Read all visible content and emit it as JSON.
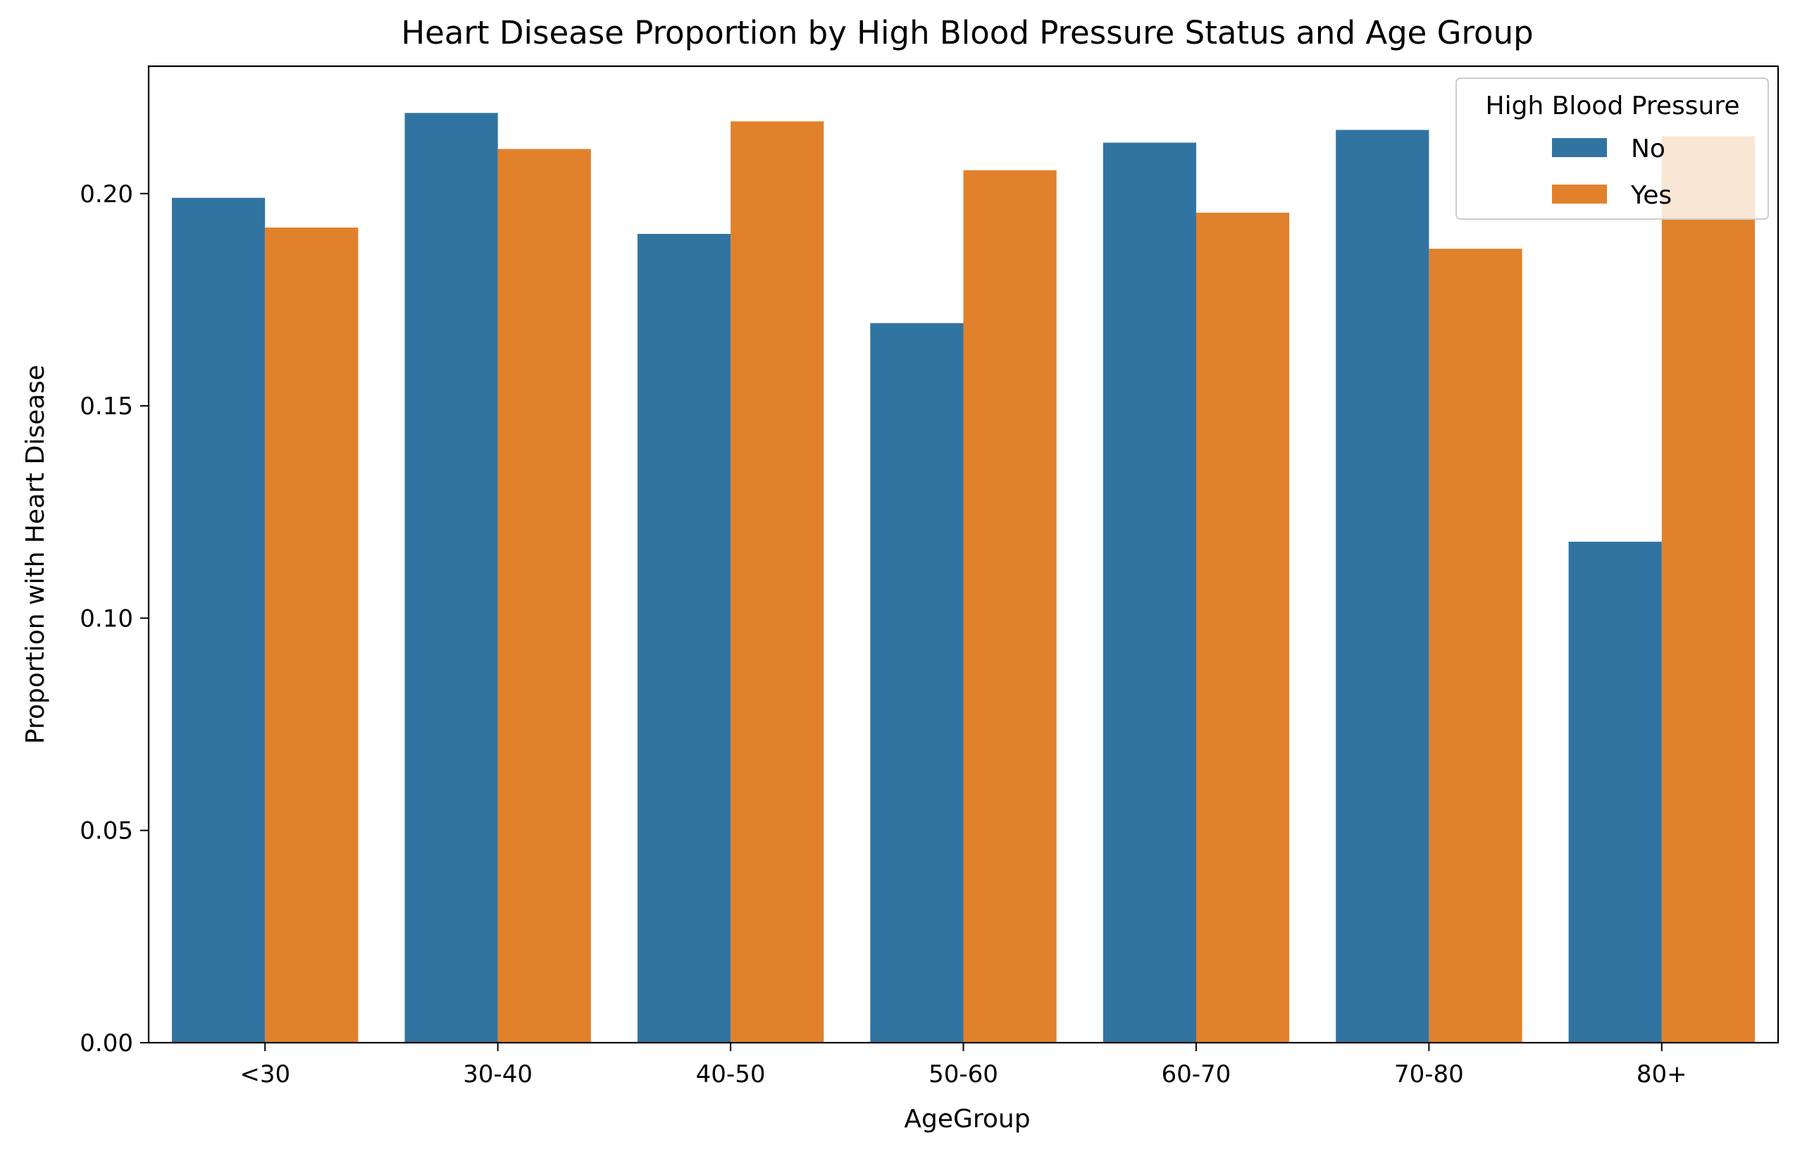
{
  "chart_data": {
    "type": "bar",
    "title": "Heart Disease Proportion by High Blood Pressure Status and Age Group",
    "xlabel": "AgeGroup",
    "ylabel": "Proportion with Heart Disease",
    "categories": [
      "<30",
      "30-40",
      "40-50",
      "50-60",
      "60-70",
      "70-80",
      "80+"
    ],
    "ylim": [
      0,
      0.23
    ],
    "yticks": [
      "0.00",
      "0.05",
      "0.10",
      "0.15",
      "0.20"
    ],
    "grid": false,
    "legend": {
      "title": "High Blood Pressure",
      "placement": "top-right"
    },
    "series": [
      {
        "name": "No",
        "color": "#3274a1",
        "values": [
          0.199,
          0.219,
          0.1905,
          0.1695,
          0.212,
          0.215,
          0.118
        ]
      },
      {
        "name": "Yes",
        "color": "#e1812c",
        "values": [
          0.192,
          0.2105,
          0.217,
          0.2055,
          0.1955,
          0.187,
          0.2135
        ]
      }
    ]
  }
}
